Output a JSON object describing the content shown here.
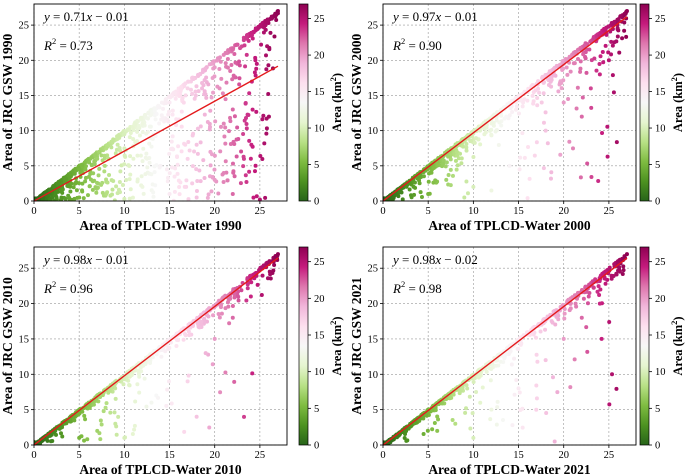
{
  "figure": {
    "colormap": [
      "#276419",
      "#4d9221",
      "#7fbc41",
      "#b8e186",
      "#e6f5d0",
      "#f7f7f7",
      "#fde0ef",
      "#f1b6da",
      "#de77ae",
      "#c51b7d",
      "#8e0152"
    ],
    "fit_line_color": "#e41a1c"
  },
  "chart_data": [
    {
      "type": "scatter",
      "id": "1990",
      "xlabel": "Area of TPLCD-Water 1990",
      "ylabel": "Area of JRC GSW 1990",
      "equation": {
        "y": "y",
        "eq": " = 0.71",
        "x": "x",
        "rest": " − 0.01"
      },
      "r2": {
        "r": "R",
        "sup": "2",
        "rest": " = 0.73"
      },
      "fit": {
        "slope": 0.71,
        "intercept": -0.01
      },
      "xlim": [
        0,
        28
      ],
      "ylim": [
        0,
        28
      ],
      "xticks": [
        0,
        5,
        10,
        15,
        20,
        25
      ],
      "yticks": [
        0,
        5,
        10,
        15,
        20,
        25
      ],
      "grid": true,
      "points_sample": [
        [
          0.5,
          0.4
        ],
        [
          2,
          1.5
        ],
        [
          3.5,
          3
        ],
        [
          5,
          4.5
        ],
        [
          7,
          6
        ],
        [
          8,
          7.5
        ],
        [
          10,
          9.5
        ],
        [
          12,
          11
        ],
        [
          15,
          14
        ],
        [
          17,
          16
        ],
        [
          20,
          19
        ],
        [
          22,
          21.5
        ],
        [
          24,
          23.5
        ],
        [
          25.5,
          25
        ],
        [
          27,
          27
        ],
        [
          3,
          0.2
        ],
        [
          5,
          0.5
        ],
        [
          8,
          1
        ],
        [
          10,
          0.3
        ],
        [
          12,
          2
        ],
        [
          15,
          1
        ],
        [
          18,
          0.5
        ],
        [
          20,
          3
        ],
        [
          22,
          1
        ],
        [
          25,
          0.2
        ],
        [
          26,
          12
        ],
        [
          24,
          6
        ],
        [
          18,
          8
        ],
        [
          14,
          5
        ],
        [
          12.5,
          6
        ],
        [
          22,
          13
        ],
        [
          21,
          11
        ],
        [
          25.8,
          22
        ],
        [
          24.5,
          20
        ]
      ],
      "colorbar": {
        "label": "Area (km",
        "sup": "2",
        "close": ")",
        "ticks": [
          0,
          5,
          10,
          15,
          20,
          25
        ],
        "range": [
          0,
          27
        ]
      }
    },
    {
      "type": "scatter",
      "id": "2000",
      "xlabel": "Area of TPLCD-Water 2000",
      "ylabel": "Area of JRC GSW 2000",
      "equation": {
        "y": "y",
        "eq": " = 0.97",
        "x": "x",
        "rest": " − 0.01"
      },
      "r2": {
        "r": "R",
        "sup": "2",
        "rest": " = 0.90"
      },
      "fit": {
        "slope": 0.97,
        "intercept": -0.01
      },
      "xlim": [
        0,
        28
      ],
      "ylim": [
        0,
        28
      ],
      "xticks": [
        0,
        5,
        10,
        15,
        20,
        25
      ],
      "yticks": [
        0,
        5,
        10,
        15,
        20,
        25
      ],
      "grid": true,
      "points_sample": [
        [
          0.5,
          0.4
        ],
        [
          2,
          1.9
        ],
        [
          4,
          3.8
        ],
        [
          6,
          5.7
        ],
        [
          8,
          7.7
        ],
        [
          10,
          9.6
        ],
        [
          12,
          11.6
        ],
        [
          14,
          13.5
        ],
        [
          16,
          15.5
        ],
        [
          18,
          17.6
        ],
        [
          20,
          19.5
        ],
        [
          22,
          21.4
        ],
        [
          24,
          23.5
        ],
        [
          26,
          25.5
        ],
        [
          27,
          27
        ],
        [
          5,
          1
        ],
        [
          7,
          3
        ],
        [
          9,
          0.5
        ],
        [
          10,
          2
        ],
        [
          12,
          1.5
        ],
        [
          14,
          5
        ],
        [
          16,
          0.4
        ],
        [
          18,
          10
        ],
        [
          20,
          14
        ],
        [
          22,
          12
        ],
        [
          24,
          18
        ],
        [
          25,
          20
        ],
        [
          23,
          16
        ]
      ],
      "colorbar": {
        "label": "Area (km",
        "sup": "2",
        "close": ")",
        "ticks": [
          0,
          5,
          10,
          15,
          20,
          25
        ],
        "range": [
          0,
          27
        ]
      }
    },
    {
      "type": "scatter",
      "id": "2010",
      "xlabel": "Area of TPLCD-Water 2010",
      "ylabel": "Area of JRC GSW 2010",
      "equation": {
        "y": "y",
        "eq": " = 0.98",
        "x": "x",
        "rest": " − 0.01"
      },
      "r2": {
        "r": "R",
        "sup": "2",
        "rest": " = 0.96"
      },
      "fit": {
        "slope": 0.98,
        "intercept": -0.01
      },
      "xlim": [
        0,
        28
      ],
      "ylim": [
        0,
        28
      ],
      "xticks": [
        0,
        5,
        10,
        15,
        20,
        25
      ],
      "yticks": [
        0,
        5,
        10,
        15,
        20,
        25
      ],
      "grid": true,
      "points_sample": [
        [
          0.5,
          0.5
        ],
        [
          2,
          1.9
        ],
        [
          4,
          3.9
        ],
        [
          6,
          5.8
        ],
        [
          8,
          7.8
        ],
        [
          10,
          9.7
        ],
        [
          12,
          11.7
        ],
        [
          14,
          13.7
        ],
        [
          16,
          15.7
        ],
        [
          18,
          17.6
        ],
        [
          20,
          19.6
        ],
        [
          22,
          21.6
        ],
        [
          24,
          23.6
        ],
        [
          26,
          25.6
        ],
        [
          27,
          27
        ],
        [
          5,
          1
        ],
        [
          7,
          2
        ],
        [
          9,
          3
        ],
        [
          10,
          1
        ],
        [
          13,
          6
        ],
        [
          17,
          9
        ],
        [
          18,
          4
        ],
        [
          20,
          15
        ],
        [
          22,
          18
        ],
        [
          24,
          21
        ],
        [
          19,
          13
        ]
      ],
      "colorbar": {
        "label": "Area (km",
        "sup": "2",
        "close": ")",
        "ticks": [
          0,
          5,
          10,
          15,
          20,
          25
        ],
        "range": [
          0,
          27
        ]
      }
    },
    {
      "type": "scatter",
      "id": "2021",
      "xlabel": "Area of TPLCD-Water 2021",
      "ylabel": "Area of JRC GSW 2021",
      "equation": {
        "y": "y",
        "eq": " = 0.98",
        "x": "x",
        "rest": " − 0.02"
      },
      "r2": {
        "r": "R",
        "sup": "2",
        "rest": " = 0.98"
      },
      "fit": {
        "slope": 0.98,
        "intercept": -0.02
      },
      "xlim": [
        0,
        28
      ],
      "ylim": [
        0,
        28
      ],
      "xticks": [
        0,
        5,
        10,
        15,
        20,
        25
      ],
      "yticks": [
        0,
        5,
        10,
        15,
        20,
        25
      ],
      "grid": true,
      "points_sample": [
        [
          0.5,
          0.5
        ],
        [
          2,
          1.9
        ],
        [
          4,
          3.9
        ],
        [
          6,
          5.9
        ],
        [
          8,
          7.8
        ],
        [
          10,
          9.8
        ],
        [
          12,
          11.8
        ],
        [
          14,
          13.7
        ],
        [
          16,
          15.7
        ],
        [
          18,
          17.7
        ],
        [
          20,
          19.6
        ],
        [
          22,
          21.6
        ],
        [
          24,
          23.6
        ],
        [
          26,
          25.6
        ],
        [
          27,
          27
        ],
        [
          6,
          2
        ],
        [
          8,
          3
        ],
        [
          10,
          1
        ],
        [
          12,
          5
        ],
        [
          15,
          8
        ],
        [
          18,
          12
        ],
        [
          19,
          0.5
        ],
        [
          22,
          18
        ],
        [
          24,
          20
        ],
        [
          20,
          15
        ]
      ],
      "colorbar": {
        "label": "Area (km",
        "sup": "2",
        "close": ")",
        "ticks": [
          0,
          5,
          10,
          15,
          20,
          25
        ],
        "range": [
          0,
          27
        ]
      }
    }
  ]
}
